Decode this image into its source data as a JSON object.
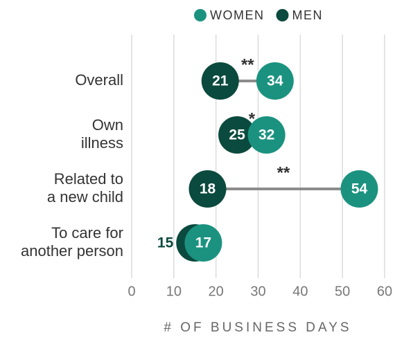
{
  "chart_data": {
    "type": "dumbbell",
    "categories": [
      [
        "Overall"
      ],
      [
        "Own",
        "illness"
      ],
      [
        "Related to",
        "a new child"
      ],
      [
        "To care for",
        "another person"
      ]
    ],
    "series": [
      {
        "name": "WOMEN",
        "color": "#1b9280",
        "values": [
          34,
          32,
          54,
          17
        ]
      },
      {
        "name": "MEN",
        "color": "#0b4a3e",
        "values": [
          21,
          25,
          18,
          15
        ]
      }
    ],
    "annotations": [
      "**",
      "*",
      "**",
      null
    ],
    "xlabel": "# OF BUSINESS DAYS",
    "xlim": [
      0,
      60
    ],
    "xticks": [
      0,
      10,
      20,
      30,
      40,
      50,
      60
    ],
    "grid": true,
    "legend": "top"
  }
}
